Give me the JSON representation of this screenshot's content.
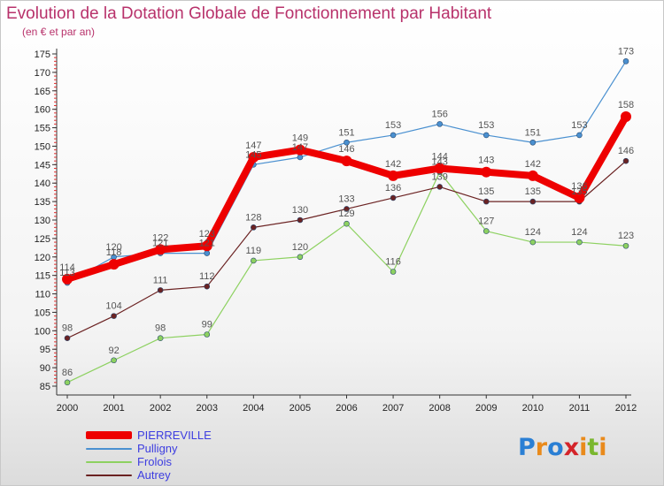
{
  "title": "Evolution de la Dotation Globale de Fonctionnement par Habitant",
  "subtitle": "(en € et par an)",
  "logo": {
    "letters": [
      "P",
      "r",
      "o",
      "x",
      "i",
      "t",
      "i"
    ],
    "colors": [
      "#2a7fd4",
      "#e98a1b",
      "#2a7fd4",
      "#d4242a",
      "#e98a1b",
      "#7ab72f",
      "#e98a1b"
    ]
  },
  "chart_data": {
    "type": "line",
    "x": [
      "2000",
      "2001",
      "2002",
      "2003",
      "2004",
      "2005",
      "2006",
      "2007",
      "2008",
      "2009",
      "2010",
      "2011",
      "2012"
    ],
    "ylim": [
      85,
      175
    ],
    "yticks": [
      85,
      90,
      95,
      100,
      105,
      110,
      115,
      120,
      125,
      130,
      135,
      140,
      145,
      150,
      155,
      160,
      165,
      170,
      175
    ],
    "grid": false,
    "legend_position": "bottom-left",
    "series": [
      {
        "name": "Pulligny",
        "color": "#4a90d0",
        "width": 1.2,
        "marker": 3,
        "values": [
          113,
          120,
          121,
          121,
          145,
          147,
          151,
          153,
          156,
          153,
          151,
          153,
          173
        ]
      },
      {
        "name": "Frolois",
        "color": "#8dd160",
        "width": 1.2,
        "marker": 3,
        "values": [
          86,
          92,
          98,
          99,
          119,
          120,
          129,
          116,
          143,
          127,
          124,
          124,
          123
        ]
      },
      {
        "name": "Autrey",
        "color": "#6b2222",
        "width": 1.2,
        "marker": 3,
        "values": [
          98,
          104,
          111,
          112,
          128,
          130,
          133,
          136,
          139,
          135,
          135,
          135,
          146
        ]
      },
      {
        "name": "PIERREVILLE",
        "color": "#ee0000",
        "width": 8,
        "marker": 6,
        "values": [
          114,
          118,
          122,
          123,
          147,
          149,
          146,
          142,
          144,
          143,
          142,
          136,
          158
        ]
      }
    ],
    "legend_order": [
      "PIERREVILLE",
      "Pulligny",
      "Frolois",
      "Autrey"
    ]
  }
}
